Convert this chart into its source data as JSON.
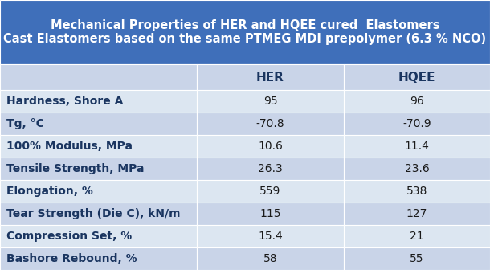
{
  "title_line1": "Mechanical Properties of HER and HQEE cured  Elastomers",
  "title_line2": "Cast Elastomers based on the same PTMEG MDI prepolymer (6.3 % NCO)",
  "header_bg": "#3F6FBA",
  "header_text_color": "#FFFFFF",
  "col_header_bg": "#C9D4E8",
  "row_bg_light": "#DCE6F1",
  "row_bg_dark": "#C9D4E8",
  "row_label_color": "#1A3560",
  "data_text_color": "#1A1A1A",
  "col_headers": [
    "HER",
    "HQEE"
  ],
  "row_labels": [
    "Hardness, Shore A",
    "Tg, °C",
    "100% Modulus, MPa",
    "Tensile Strength, MPa",
    "Elongation, %",
    "Tear Strength (Die C), kN/m",
    "Compression Set, %",
    "Bashore Rebound, %"
  ],
  "her_values": [
    "95",
    "-70.8",
    "10.6",
    "26.3",
    "559",
    "115",
    "15.4",
    "58"
  ],
  "hqee_values": [
    "96",
    "-70.9",
    "11.4",
    "23.6",
    "538",
    "127",
    "21",
    "55"
  ],
  "border_color": "#FFFFFF",
  "title_fontsize": 10.5,
  "col_header_fontsize": 11,
  "row_label_fontsize": 10,
  "data_fontsize": 10,
  "fig_width": 6.1,
  "fig_height": 3.36,
  "dpi": 100
}
